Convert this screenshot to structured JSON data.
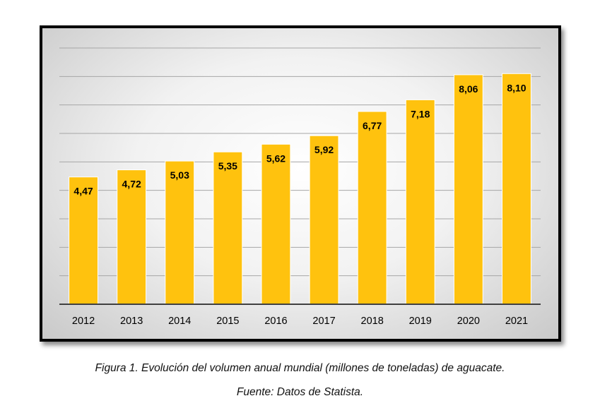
{
  "chart_data": {
    "type": "bar",
    "categories": [
      "2012",
      "2013",
      "2014",
      "2015",
      "2016",
      "2017",
      "2018",
      "2019",
      "2020",
      "2021"
    ],
    "values": [
      4.47,
      4.72,
      5.03,
      5.35,
      5.62,
      5.92,
      6.77,
      7.18,
      8.06,
      8.1
    ],
    "value_labels": [
      "4,47",
      "4,72",
      "5,03",
      "5,35",
      "5,62",
      "5,92",
      "6,77",
      "7,18",
      "8,06",
      "8,10"
    ],
    "ylim": [
      0,
      9
    ],
    "grid": true,
    "title": "",
    "xlabel": "",
    "ylabel": ""
  },
  "colors": {
    "bar": "#ffc20e",
    "bar_edge": "#ffffff",
    "grid": "#a6a6a6",
    "axis": "#404040"
  },
  "caption": {
    "figure": "Figura 1. Evolución del volumen anual mundial (millones de toneladas) de aguacate.",
    "source": "Fuente: Datos de Statista."
  }
}
